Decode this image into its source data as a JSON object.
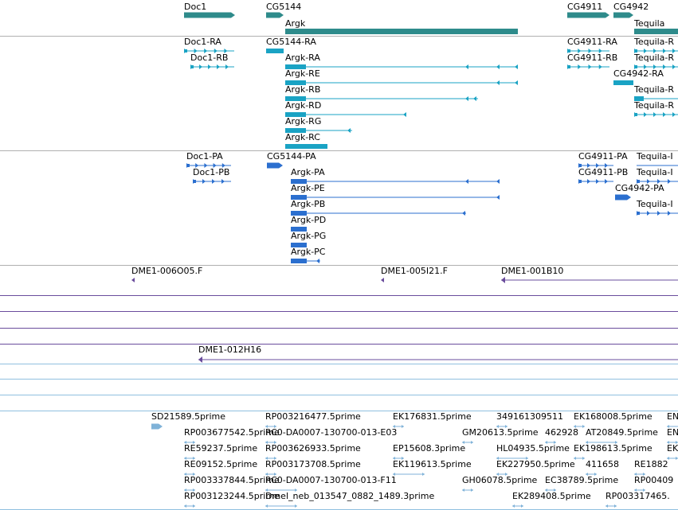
{
  "colors": {
    "gene": "#2e8b8b",
    "flybase_transcript": "#1aa3c4",
    "refseq_transcript": "#2b6fcf",
    "bac_clone": "#6a4c9c",
    "est": "#7fb2d8",
    "row_separator": "#b0b0b0",
    "est_separator": "#90c0e0",
    "purple_separator": "#7b5aa8"
  },
  "tracks": {
    "genes": [
      {
        "label": "Doc1",
        "dir": "+"
      },
      {
        "label": "CG5144",
        "dir": "+"
      },
      {
        "label": "Argk",
        "dir": "+"
      },
      {
        "label": "CG4911",
        "dir": "+"
      },
      {
        "label": "CG4942",
        "dir": "+"
      },
      {
        "label": "Tequila",
        "dir": "+"
      }
    ],
    "flybase_transcripts": [
      {
        "label": "Doc1-RA"
      },
      {
        "label": "Doc1-RB"
      },
      {
        "label": "CG5144-RA"
      },
      {
        "label": "Argk-RA"
      },
      {
        "label": "Argk-RE"
      },
      {
        "label": "Argk-RB"
      },
      {
        "label": "Argk-RD"
      },
      {
        "label": "Argk-RG"
      },
      {
        "label": "Argk-RC"
      },
      {
        "label": "CG4911-RA"
      },
      {
        "label": "CG4911-RB"
      },
      {
        "label": "CG4942-RA"
      },
      {
        "label": "Tequila-R"
      },
      {
        "label": "Tequila-R"
      },
      {
        "label": "Tequila-R"
      },
      {
        "label": "Tequila-R"
      }
    ],
    "refseq_transcripts": [
      {
        "label": "Doc1-PA"
      },
      {
        "label": "Doc1-PB"
      },
      {
        "label": "CG5144-PA"
      },
      {
        "label": "Argk-PA"
      },
      {
        "label": "Argk-PE"
      },
      {
        "label": "Argk-PB"
      },
      {
        "label": "Argk-PD"
      },
      {
        "label": "Argk-PG"
      },
      {
        "label": "Argk-PC"
      },
      {
        "label": "CG4911-PA"
      },
      {
        "label": "CG4911-PB"
      },
      {
        "label": "CG4942-PA"
      },
      {
        "label": "Tequila-I"
      },
      {
        "label": "Tequila-I"
      },
      {
        "label": "Tequila-I"
      }
    ],
    "bac_clones": [
      {
        "label": "DME1-006O05.F"
      },
      {
        "label": "DME1-005I21.F"
      },
      {
        "label": "DME1-001B10"
      },
      {
        "label": "DME1-012H16"
      }
    ],
    "ests": [
      {
        "label": "SD21589.5prime"
      },
      {
        "label": "RP003216477.5prime"
      },
      {
        "label": "EK176831.5prime"
      },
      {
        "label": "349161309511"
      },
      {
        "label": "EK168008.5prime"
      },
      {
        "label": "EN"
      },
      {
        "label": "RP003677542.5prime"
      },
      {
        "label": "RC0-DA0007-130700-013-E03"
      },
      {
        "label": "GM20613.5prime"
      },
      {
        "label": "462928"
      },
      {
        "label": "AT20849.5prime"
      },
      {
        "label": "EN"
      },
      {
        "label": "RE59237.5prime"
      },
      {
        "label": "RP003626933.5prime"
      },
      {
        "label": "EP15608.3prime"
      },
      {
        "label": "HL04935.5prime"
      },
      {
        "label": "EK198613.5prime"
      },
      {
        "label": "EK"
      },
      {
        "label": "RE09152.5prime"
      },
      {
        "label": "RP003173708.5prime"
      },
      {
        "label": "EK119613.5prime"
      },
      {
        "label": "EK227950.5prime"
      },
      {
        "label": "411658"
      },
      {
        "label": "RE1882"
      },
      {
        "label": "RP003337844.5prime"
      },
      {
        "label": "RC0-DA0007-130700-013-F11"
      },
      {
        "label": "GH06078.5prime"
      },
      {
        "label": "EC38789.5prime"
      },
      {
        "label": "RP00409"
      },
      {
        "label": "RP003123244.5prime"
      },
      {
        "label": "Dmel_neb_013547_0882_1489.3prime"
      },
      {
        "label": "EK289408.5prime"
      },
      {
        "label": "RP003317465."
      }
    ]
  }
}
